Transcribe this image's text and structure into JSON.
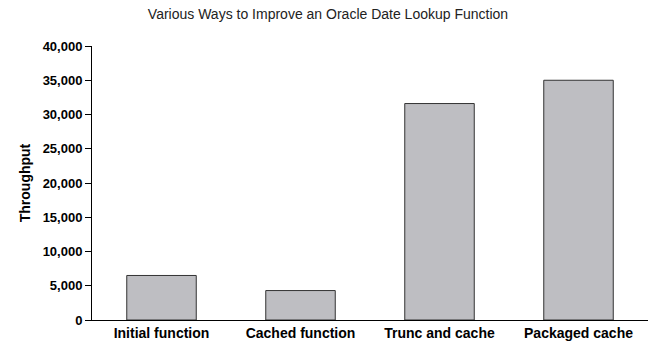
{
  "chart_data": {
    "type": "bar",
    "title": "Various Ways to Improve an Oracle Date Lookup Function",
    "y_label": "Throughput",
    "categories": [
      "Initial function",
      "Cached function",
      "Trunc and cache",
      "Packaged cache"
    ],
    "values": [
      6500,
      4300,
      31600,
      35000
    ],
    "color": "#bebec2",
    "ylim": [
      0,
      40000
    ],
    "yticks": [
      0,
      {
        "value": 5000,
        "label": "5,000"
      },
      {
        "value": 10000,
        "label": "10,000"
      },
      {
        "value": 15000,
        "label": "15,000"
      },
      {
        "value": 20000,
        "label": "20,000"
      },
      {
        "value": 25000,
        "label": "25,000"
      },
      {
        "value": 30000,
        "label": "30,000"
      },
      {
        "value": 35000,
        "label": "35,000"
      },
      {
        "value": 40000,
        "label": "40,000"
      }
    ],
    "grid": false
  }
}
